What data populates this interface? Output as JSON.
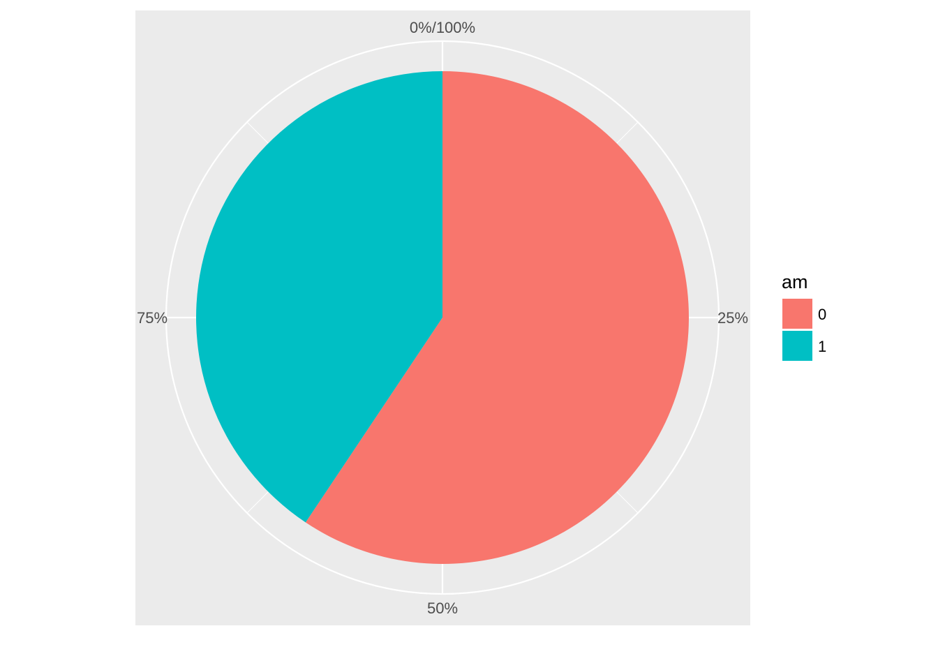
{
  "chart_data": {
    "type": "pie",
    "title": "",
    "legend": {
      "title": "am",
      "position": "right"
    },
    "slices": [
      {
        "label": "0",
        "value": 59.375,
        "color": "#F8766D"
      },
      {
        "label": "1",
        "value": 40.625,
        "color": "#00BFC4"
      }
    ],
    "circular_ticks": [
      "0%/100%",
      "25%",
      "50%",
      "75%"
    ],
    "grid": true,
    "panel_background": "#EBEBEB",
    "grid_color": "#FFFFFF"
  }
}
